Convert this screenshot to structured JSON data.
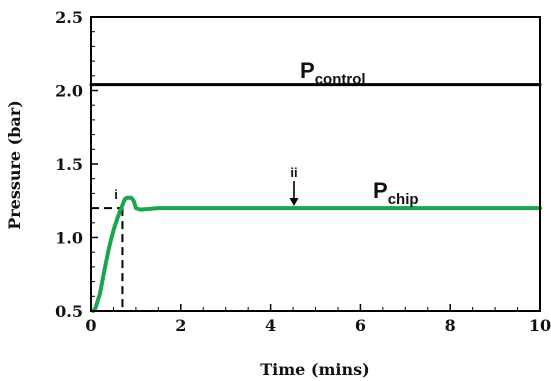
{
  "chart_data": {
    "type": "line",
    "title": "",
    "xlabel": "Time (mins)",
    "ylabel": "Pressure (bar)",
    "xlim": [
      0,
      10
    ],
    "ylim": [
      0.5,
      2.5
    ],
    "x_ticks": [
      0,
      2,
      4,
      6,
      8,
      10
    ],
    "x_tick_labels": [
      "0",
      "2",
      "4",
      "6",
      "8",
      "10"
    ],
    "y_ticks": [
      0.5,
      1.0,
      1.5,
      2.0,
      2.5
    ],
    "y_tick_labels": [
      "0.5",
      "1.0",
      "1.5",
      "2.0",
      "2.5"
    ],
    "grid": false,
    "series": [
      {
        "name": "P control",
        "label_main": "P",
        "label_sub": "control",
        "color": "#000000",
        "x": [
          0,
          10
        ],
        "y": [
          2.04,
          2.04
        ]
      },
      {
        "name": "P chip",
        "label_main": "P",
        "label_sub": "chip",
        "color": "#1aa64f",
        "x": [
          0.05,
          0.1,
          0.2,
          0.3,
          0.4,
          0.5,
          0.6,
          0.7,
          0.75,
          0.8,
          0.85,
          0.9,
          0.95,
          1.0,
          1.1,
          1.5,
          2,
          3,
          4,
          5,
          6,
          7,
          8,
          9,
          10
        ],
        "y": [
          0.5,
          0.52,
          0.62,
          0.78,
          0.93,
          1.05,
          1.14,
          1.22,
          1.26,
          1.27,
          1.27,
          1.27,
          1.25,
          1.2,
          1.19,
          1.2,
          1.2,
          1.2,
          1.2,
          1.2,
          1.2,
          1.2,
          1.2,
          1.2,
          1.2
        ]
      }
    ],
    "annotations": {
      "marker_i": {
        "label": "i",
        "x": 0.7,
        "y": 1.2
      },
      "marker_ii": {
        "label": "ii",
        "x": 4.55,
        "y": 1.2
      }
    }
  }
}
